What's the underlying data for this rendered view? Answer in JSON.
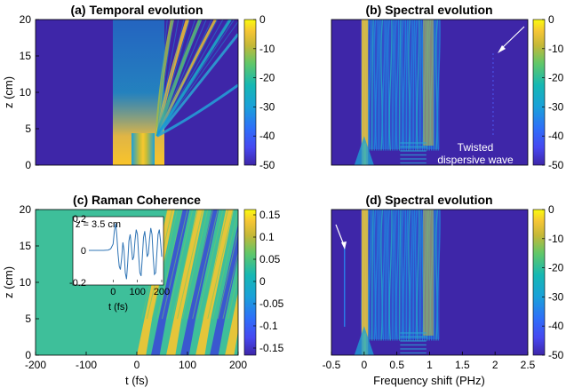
{
  "chart_data": [
    {
      "panel": "a",
      "type": "heatmap",
      "title": "(a) Temporal evolution",
      "xlabel": "",
      "ylabel": "z (cm)",
      "ylim": [
        0,
        20
      ],
      "yticks": [
        "0",
        "5",
        "10",
        "15",
        "20"
      ],
      "colorbar": {
        "ticks": [
          "0",
          "-10",
          "-20",
          "-30",
          "-40",
          "-50"
        ],
        "range": [
          -50,
          0
        ]
      },
      "features": [
        {
          "kind": "pulse-core",
          "t_start_fs": -30,
          "t_end_fs": 30,
          "z_from": 0,
          "z_to": 4
        },
        {
          "kind": "fission-trajectories",
          "origin_t_fs": 40,
          "origin_z_cm": 4,
          "end_t_fs": [
            70,
            100,
            125,
            155,
            185,
            200,
            200
          ],
          "end_z_cm": [
            20,
            20,
            20,
            20,
            20,
            18,
            11
          ]
        }
      ]
    },
    {
      "panel": "b",
      "type": "heatmap",
      "title": "(b) Spectral evolution",
      "xlabel": "",
      "ylabel": "",
      "ylim": [
        0,
        20
      ],
      "colorbar": {
        "ticks": [
          "0",
          "-10",
          "-20",
          "-30",
          "-40",
          "-50"
        ],
        "range": [
          -50,
          0
        ]
      },
      "annotation": {
        "line1": "Twisted",
        "line2": "dispersive wave"
      }
    },
    {
      "panel": "c",
      "type": "heatmap",
      "title": "(c) Raman Coherence",
      "xlabel": "t (fs)",
      "ylabel": "z (cm)",
      "xlim": [
        -200,
        200
      ],
      "ylim": [
        0,
        20
      ],
      "xticks": [
        "-200",
        "-100",
        "0",
        "100",
        "200"
      ],
      "yticks": [
        "0",
        "5",
        "10",
        "15",
        "20"
      ],
      "colorbar": {
        "ticks": [
          "0.15",
          "0.1",
          "0.05",
          "0",
          "-0.05",
          "-0.1",
          "-0.15"
        ],
        "range": [
          -0.17,
          0.17
        ]
      },
      "stripe_period_fs": 58,
      "inset": {
        "label": "z = 3.5 cm",
        "xlabel": "t (fs)",
        "xlim": [
          -100,
          200
        ],
        "ylim": [
          -0.2,
          0.2
        ],
        "xticks": [
          "0",
          "100",
          "200"
        ],
        "yticks": [
          "0.2",
          "0",
          "-0.2"
        ],
        "x": [
          -100,
          -80,
          -60,
          -40,
          -20,
          -10,
          0,
          5,
          10,
          15,
          20,
          25,
          30,
          35,
          40,
          45,
          50,
          55,
          60,
          65,
          70,
          75,
          80,
          85,
          90,
          95,
          100,
          105,
          110,
          115,
          120,
          125,
          130,
          135,
          140,
          145,
          150,
          155,
          160,
          165,
          170,
          175,
          180,
          185,
          190,
          195,
          200
        ],
        "y": [
          0,
          0,
          0,
          0,
          0.002,
          0.01,
          0.04,
          0.12,
          0.17,
          0.1,
          -0.02,
          -0.1,
          -0.12,
          -0.05,
          0.05,
          0.0,
          -0.14,
          -0.18,
          -0.08,
          0.06,
          0.1,
          0.03,
          -0.06,
          -0.04,
          0.06,
          0.13,
          0.1,
          -0.03,
          -0.14,
          -0.16,
          -0.05,
          0.08,
          0.12,
          0.05,
          -0.04,
          -0.02,
          0.07,
          0.14,
          0.1,
          -0.04,
          -0.15,
          -0.14,
          -0.02,
          0.1,
          0.13,
          0.06,
          -0.04
        ]
      }
    },
    {
      "panel": "d",
      "type": "heatmap",
      "title": "(d) Spectral evolution",
      "xlabel": "Frequency shift (PHz)",
      "ylabel": "",
      "xlim": [
        -0.5,
        2.5
      ],
      "ylim": [
        0,
        20
      ],
      "xticks": [
        "-0.5",
        "0",
        "0.5",
        "1",
        "1.5",
        "2",
        "2.5"
      ],
      "colorbar": {
        "ticks": [
          "0",
          "-10",
          "-20",
          "-30",
          "-40",
          "-50"
        ],
        "range": [
          -50,
          0
        ]
      }
    }
  ]
}
